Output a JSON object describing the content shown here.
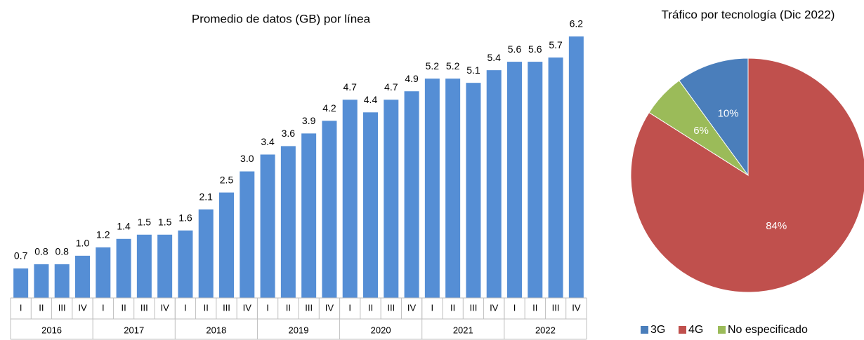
{
  "chart_data": [
    {
      "type": "bar",
      "title": "Promedio de datos (GB) por línea",
      "categories": [
        "I",
        "II",
        "III",
        "IV",
        "I",
        "II",
        "III",
        "IV",
        "I",
        "II",
        "III",
        "IV",
        "I",
        "II",
        "III",
        "IV",
        "I",
        "II",
        "III",
        "IV",
        "I",
        "II",
        "III",
        "IV",
        "I",
        "II",
        "III",
        "IV"
      ],
      "groups": [
        "2016",
        "2017",
        "2018",
        "2019",
        "2020",
        "2021",
        "2022"
      ],
      "values": [
        0.7,
        0.8,
        0.8,
        1.0,
        1.2,
        1.4,
        1.5,
        1.5,
        1.6,
        2.1,
        2.5,
        3.0,
        3.4,
        3.6,
        3.9,
        4.2,
        4.7,
        4.4,
        4.7,
        4.9,
        5.2,
        5.2,
        5.1,
        5.4,
        5.6,
        5.6,
        5.7,
        6.2
      ],
      "value_labels": [
        "0.7",
        "0.8",
        "0.8",
        "1.0",
        "1.2",
        "1.4",
        "1.5",
        "1.5",
        "1.6",
        "2.1",
        "2.5",
        "3.0",
        "3.4",
        "3.6",
        "3.9",
        "4.2",
        "4.7",
        "4.4",
        "4.7",
        "4.9",
        "5.2",
        "5.2",
        "5.1",
        "5.4",
        "5.6",
        "5.6",
        "5.7",
        "6.2"
      ],
      "color": "#558ed5"
    },
    {
      "type": "pie",
      "title": "Tráfico por tecnología (Dic 2022)",
      "categories": [
        "3G",
        "4G",
        "No especificado"
      ],
      "values": [
        10,
        84,
        6
      ],
      "value_labels": [
        "10%",
        "84%",
        "6%"
      ],
      "colors": [
        "#4a7ebb",
        "#c0504d",
        "#9bbb59"
      ],
      "legend": "bottom"
    }
  ]
}
